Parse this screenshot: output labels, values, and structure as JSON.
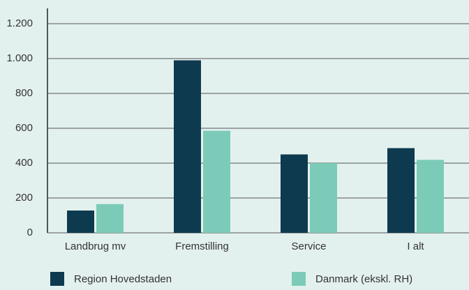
{
  "chart_data": {
    "type": "bar",
    "categories": [
      "Landbrug mv",
      "Fremstilling",
      "Service",
      "I alt"
    ],
    "series": [
      {
        "name": "Region Hovedstaden",
        "color": "#0d3a4f",
        "values": [
          128,
          990,
          450,
          486
        ]
      },
      {
        "name": "Danmark (ekskl. RH)",
        "color": "#7ccbb8",
        "values": [
          165,
          586,
          400,
          419
        ]
      }
    ],
    "ylim": [
      0,
      1200
    ],
    "yticks": [
      0,
      200,
      400,
      600,
      800,
      {
        "value": 1000,
        "label": "1.000"
      },
      {
        "value": 1200,
        "label": "1.200"
      }
    ],
    "grid": true
  }
}
